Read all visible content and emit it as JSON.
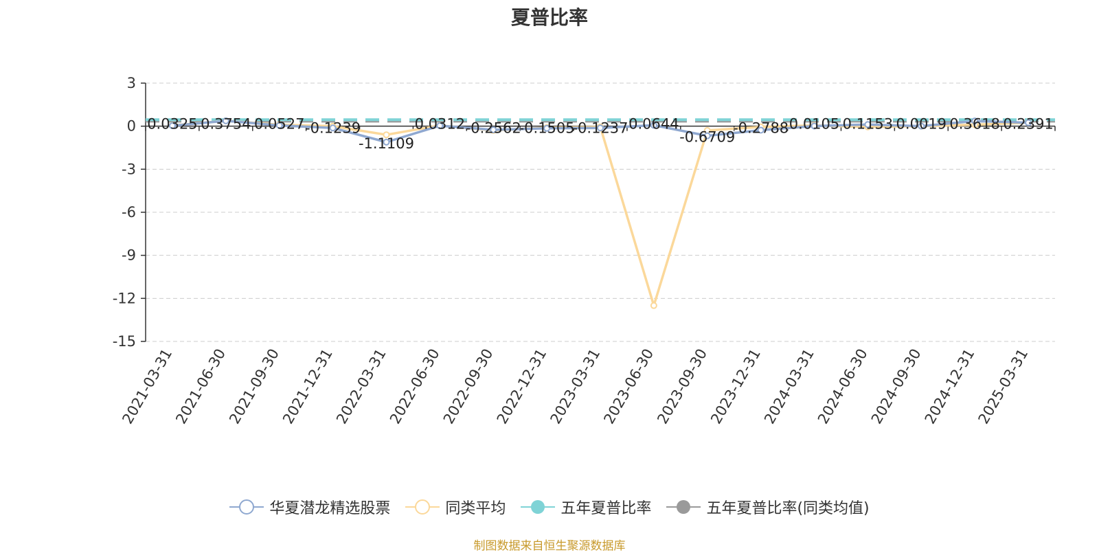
{
  "chart_data": {
    "type": "line",
    "title": "夏普比率",
    "categories": [
      "2021-03-31",
      "2021-06-30",
      "2021-09-30",
      "2021-12-31",
      "2022-03-31",
      "2022-06-30",
      "2022-09-30",
      "2022-12-31",
      "2023-03-31",
      "2023-06-30",
      "2023-09-30",
      "2023-12-31",
      "2024-03-31",
      "2024-06-30",
      "2024-09-30",
      "2024-12-31",
      "2025-03-31"
    ],
    "ylim": [
      -15,
      3
    ],
    "yticks": [
      3,
      0,
      -3,
      -6,
      -9,
      -12,
      -15
    ],
    "grid": true,
    "legend_position": "bottom",
    "series": [
      {
        "name": "华夏潜龙精选股票",
        "color": "#8fa8d0",
        "values": [
          0.0325,
          0.3754,
          0.0527,
          -0.1239,
          -1.1109,
          0.0312,
          -0.2562,
          -0.1505,
          -0.1237,
          0.0644,
          -0.6709,
          -0.2788,
          0.0105,
          0.1153,
          0.0019,
          0.3618,
          0.2391
        ],
        "labels": [
          "0.0325",
          "0.3754",
          "0.0527",
          "-0.1239",
          "-1.1109",
          "0.0312",
          "-0.2562",
          "-0.1505",
          "-0.1237",
          "0.0644",
          "-0.6709",
          "-0.2788",
          "0.0105",
          "0.1153",
          "0.0019",
          "0.3618",
          "0.2391"
        ]
      },
      {
        "name": "同类平均",
        "color": "#fbd89a",
        "values": [
          0.05,
          0.38,
          0.1,
          0.0,
          -0.6,
          0.05,
          -0.3,
          -0.1,
          -0.05,
          -12.5,
          -0.3,
          -0.05,
          0.05,
          -0.05,
          0.0,
          0.1,
          0.25
        ]
      },
      {
        "name": "五年夏普比率",
        "color": "#7fd3d6",
        "value": 0.45,
        "style": "dashed"
      },
      {
        "name": "五年夏普比率(同类均值)",
        "color": "#9a9a9a",
        "value": 0.35,
        "style": "dashed"
      }
    ]
  },
  "source_note": "制图数据来自恒生聚源数据库"
}
